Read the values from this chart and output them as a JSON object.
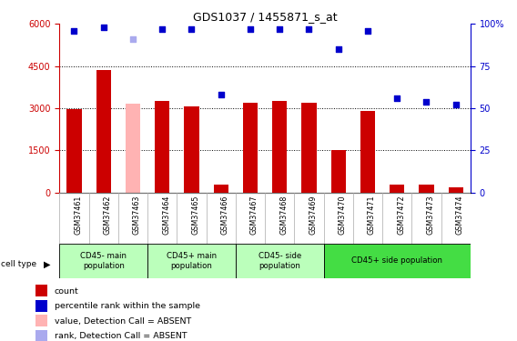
{
  "title": "GDS1037 / 1455871_s_at",
  "samples": [
    "GSM37461",
    "GSM37462",
    "GSM37463",
    "GSM37464",
    "GSM37465",
    "GSM37466",
    "GSM37467",
    "GSM37468",
    "GSM37469",
    "GSM37470",
    "GSM37471",
    "GSM37472",
    "GSM37473",
    "GSM37474"
  ],
  "bar_values": [
    2980,
    4350,
    3150,
    3250,
    3080,
    300,
    3200,
    3260,
    3200,
    1520,
    2920,
    280,
    290,
    190
  ],
  "bar_colors": [
    "#cc0000",
    "#cc0000",
    "#ffb3b3",
    "#cc0000",
    "#cc0000",
    "#cc0000",
    "#cc0000",
    "#cc0000",
    "#cc0000",
    "#cc0000",
    "#cc0000",
    "#cc0000",
    "#cc0000",
    "#cc0000"
  ],
  "dot_values_pct": [
    96,
    98,
    91,
    97,
    97,
    58,
    97,
    97,
    97,
    85,
    96,
    56,
    54,
    52
  ],
  "dot_colors": [
    "#0000cc",
    "#0000cc",
    "#aaaaee",
    "#0000cc",
    "#0000cc",
    "#0000cc",
    "#0000cc",
    "#0000cc",
    "#0000cc",
    "#0000cc",
    "#0000cc",
    "#0000cc",
    "#0000cc",
    "#0000cc"
  ],
  "ylim_left": [
    0,
    6000
  ],
  "ylim_right": [
    0,
    100
  ],
  "yticks_left": [
    0,
    1500,
    3000,
    4500,
    6000
  ],
  "yticks_right": [
    0,
    25,
    50,
    75,
    100
  ],
  "group_starts": [
    0,
    3,
    6,
    9
  ],
  "group_ends": [
    2,
    5,
    8,
    13
  ],
  "group_labels": [
    "CD45- main\npopulation",
    "CD45+ main\npopulation",
    "CD45- side\npopulation",
    "CD45+ side population"
  ],
  "group_colors": [
    "#bbffbb",
    "#bbffbb",
    "#bbffbb",
    "#44dd44"
  ],
  "bar_width": 0.5,
  "background_color": "#ffffff",
  "left_axis_color": "#cc0000",
  "right_axis_color": "#0000cc",
  "legend_labels": [
    "count",
    "percentile rank within the sample",
    "value, Detection Call = ABSENT",
    "rank, Detection Call = ABSENT"
  ],
  "legend_colors": [
    "#cc0000",
    "#0000cc",
    "#ffb3b3",
    "#aaaaee"
  ]
}
